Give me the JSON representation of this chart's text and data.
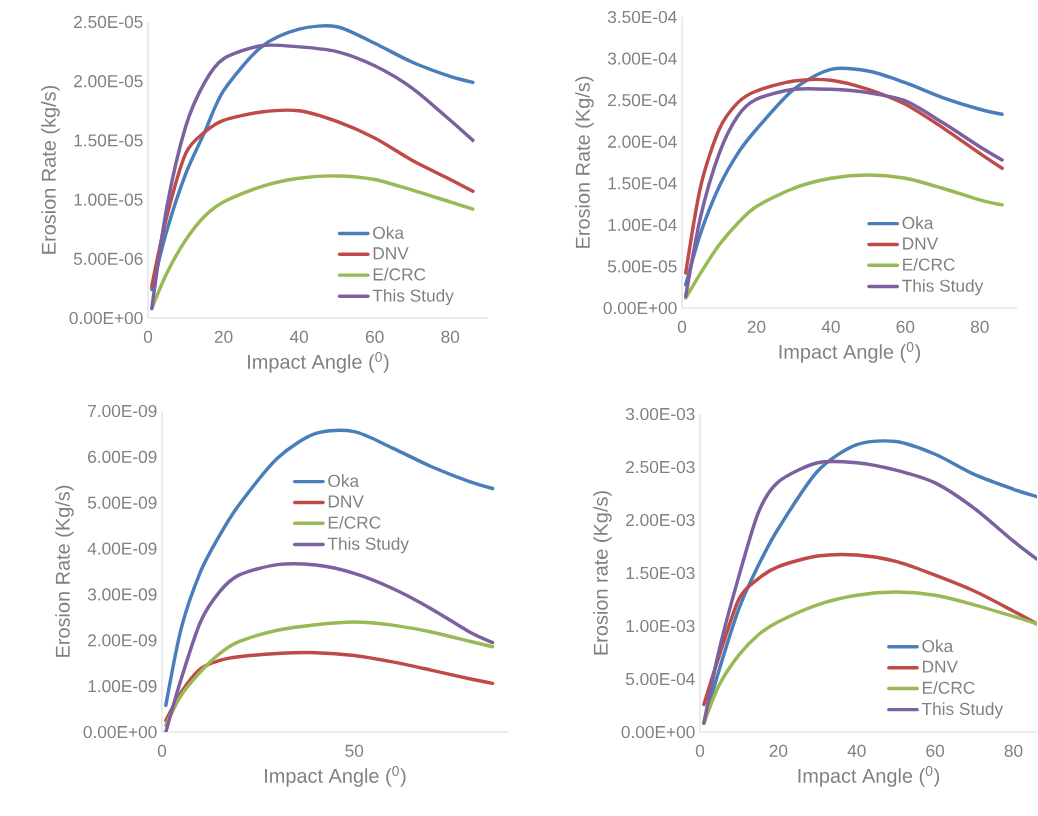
{
  "chart_data": [
    {
      "type": "line",
      "xlabel": "Impact Angle ($^{0}$)",
      "ylabel": "Erosion Rate (kg/s)",
      "legend": "bottom right",
      "x": [
        1,
        5,
        10,
        15,
        20,
        30,
        40,
        50,
        60,
        70,
        80,
        86
      ],
      "xlim": [
        0,
        90
      ],
      "xticks": [
        0,
        20,
        40,
        60,
        80
      ],
      "ylim": [
        0,
        2.5e-05
      ],
      "yticks": [
        {
          "value": 0,
          "label": "0.00E+00"
        },
        {
          "value": 5e-06,
          "label": "5.00E-06"
        },
        {
          "value": 1e-05,
          "label": "1.00E-05"
        },
        {
          "value": 1.5e-05,
          "label": "1.50E-05"
        },
        {
          "value": 2e-05,
          "label": "2.00E-05"
        },
        {
          "value": 2.5e-05,
          "label": "2.50E-05"
        }
      ],
      "series": [
        {
          "name": "Oka",
          "color": "#4a7ebb",
          "values": [
            2.4e-06,
            7.4e-06,
            1.22e-05,
            1.57e-05,
            1.92e-05,
            2.29e-05,
            2.44e-05,
            2.46e-05,
            2.32e-05,
            2.16e-05,
            2.04e-05,
            1.99e-05
          ]
        },
        {
          "name": "DNV",
          "color": "#be4b48",
          "values": [
            2.7e-06,
            8.6e-06,
            1.39e-05,
            1.57e-05,
            1.67e-05,
            1.74e-05,
            1.75e-05,
            1.66e-05,
            1.52e-05,
            1.33e-05,
            1.17e-05,
            1.07e-05
          ]
        },
        {
          "name": "E/CRC",
          "color": "#98b954",
          "values": [
            8e-07,
            3.8e-06,
            6.6e-06,
            8.6e-06,
            9.8e-06,
            1.11e-05,
            1.18e-05,
            1.2e-05,
            1.17e-05,
            1.08e-05,
            9.8e-06,
            9.2e-06
          ]
        },
        {
          "name": "This Study",
          "color": "#7d60a0",
          "values": [
            8e-07,
            9.4e-06,
            1.62e-05,
            1.99e-05,
            2.19e-05,
            2.3e-05,
            2.29e-05,
            2.25e-05,
            2.13e-05,
            1.94e-05,
            1.67e-05,
            1.5e-05
          ]
        }
      ]
    },
    {
      "type": "line",
      "xlabel": "Impact Angle ($^{0}$)",
      "ylabel": "Erosion Rate (Kg/s)",
      "legend": "bottom right",
      "x": [
        1,
        5,
        10,
        15,
        20,
        30,
        40,
        50,
        60,
        70,
        80,
        86
      ],
      "xlim": [
        0,
        90
      ],
      "xticks": [
        0,
        20,
        40,
        60,
        80
      ],
      "ylim": [
        0,
        0.00035
      ],
      "yticks": [
        {
          "value": 0,
          "label": "0.00E+00"
        },
        {
          "value": 5e-05,
          "label": "5.00E-05"
        },
        {
          "value": 0.0001,
          "label": "1.00E-04"
        },
        {
          "value": 0.00015,
          "label": "1.50E-04"
        },
        {
          "value": 0.0002,
          "label": "2.00E-04"
        },
        {
          "value": 0.00025,
          "label": "2.50E-04"
        },
        {
          "value": 0.0003,
          "label": "3.00E-04"
        },
        {
          "value": 0.00035,
          "label": "3.50E-04"
        }
      ],
      "series": [
        {
          "name": "Oka",
          "color": "#4a7ebb",
          "values": [
            2.8e-05,
            9e-05,
            0.000146,
            0.000186,
            0.000215,
            0.000263,
            0.000287,
            0.000285,
            0.000271,
            0.000253,
            0.000239,
            0.000233
          ]
        },
        {
          "name": "DNV",
          "color": "#be4b48",
          "values": [
            4.2e-05,
            0.000146,
            0.000215,
            0.000247,
            0.000261,
            0.000273,
            0.000274,
            0.000263,
            0.000245,
            0.000217,
            0.000186,
            0.000168
          ]
        },
        {
          "name": "E/CRC",
          "color": "#98b954",
          "values": [
            1.2e-05,
            4.2e-05,
            7.6e-05,
            0.000102,
            0.000122,
            0.000144,
            0.000156,
            0.00016,
            0.000156,
            0.000144,
            0.00013,
            0.000124
          ]
        },
        {
          "name": "This Study",
          "color": "#7d60a0",
          "values": [
            1.4e-05,
            0.00011,
            0.000186,
            0.000231,
            0.000251,
            0.000263,
            0.000263,
            0.000259,
            0.000249,
            0.000223,
            0.000194,
            0.000178
          ]
        }
      ]
    },
    {
      "type": "line",
      "xlabel": "Impact Angle ($^{0}$)",
      "ylabel": "Erosion Rate (Kg/s)",
      "legend": "top",
      "x": [
        1,
        5,
        10,
        15,
        20,
        30,
        40,
        50,
        60,
        70,
        80,
        86
      ],
      "xlim": [
        0,
        90
      ],
      "xticks": [
        0,
        50
      ],
      "ylim": [
        0,
        7e-09
      ],
      "yticks": [
        {
          "value": 0,
          "label": "0.00E+00"
        },
        {
          "value": 1e-09,
          "label": "1.00E-09"
        },
        {
          "value": 2e-09,
          "label": "2.00E-09"
        },
        {
          "value": 3e-09,
          "label": "3.00E-09"
        },
        {
          "value": 4e-09,
          "label": "4.00E-09"
        },
        {
          "value": 5e-09,
          "label": "5.00E-09"
        },
        {
          "value": 6e-09,
          "label": "6.00E-09"
        },
        {
          "value": 7e-09,
          "label": "7.00E-09"
        }
      ],
      "series": [
        {
          "name": "Oka",
          "color": "#4a7ebb",
          "values": [
            5.8e-10,
            2.26e-09,
            3.49e-09,
            4.29e-09,
            4.95e-09,
            5.97e-09,
            6.51e-09,
            6.55e-09,
            6.19e-09,
            5.79e-09,
            5.46e-09,
            5.31e-09
          ]
        },
        {
          "name": "DNV",
          "color": "#be4b48",
          "values": [
            2.5e-10,
            8.7e-10,
            1.38e-09,
            1.56e-09,
            1.64e-09,
            1.71e-09,
            1.73e-09,
            1.67e-09,
            1.53e-09,
            1.35e-09,
            1.16e-09,
            1.06e-09
          ]
        },
        {
          "name": "E/CRC",
          "color": "#98b954",
          "values": [
            1.5e-10,
            8e-10,
            1.31e-09,
            1.71e-09,
            1.97e-09,
            2.22e-09,
            2.34e-09,
            2.4e-09,
            2.33e-09,
            2.18e-09,
            1.98e-09,
            1.86e-09
          ]
        },
        {
          "name": "This Study",
          "color": "#7d60a0",
          "values": [
            0,
            1.16e-09,
            2.4e-09,
            3.06e-09,
            3.42e-09,
            3.65e-09,
            3.64e-09,
            3.46e-09,
            3.13e-09,
            2.69e-09,
            2.18e-09,
            1.95e-09
          ]
        }
      ]
    },
    {
      "type": "line",
      "xlabel": "Impact Angle ($^{0}$)",
      "ylabel": "Erosion rate (Kg/s)",
      "legend": "bottom right",
      "x": [
        1,
        5,
        10,
        15,
        20,
        30,
        40,
        50,
        60,
        70,
        80,
        86
      ],
      "xlim": [
        0,
        86
      ],
      "xticks": [
        0,
        20,
        40,
        60,
        80
      ],
      "ylim": [
        0,
        0.003
      ],
      "yticks": [
        {
          "value": 0,
          "label": "0.00E+00"
        },
        {
          "value": 0.0005,
          "label": "5.00E-04"
        },
        {
          "value": 0.001,
          "label": "1.00E-03"
        },
        {
          "value": 0.0015,
          "label": "1.50E-03"
        },
        {
          "value": 0.002,
          "label": "2.00E-03"
        },
        {
          "value": 0.0025,
          "label": "2.50E-03"
        },
        {
          "value": 0.003,
          "label": "3.00E-03"
        }
      ],
      "series": [
        {
          "name": "Oka",
          "color": "#4a7ebb",
          "values": [
            8.5e-05,
            0.0006,
            0.00117,
            0.00158,
            0.00192,
            0.00246,
            0.00271,
            0.00274,
            0.00262,
            0.00243,
            0.00229,
            0.00222
          ]
        },
        {
          "name": "DNV",
          "color": "#be4b48",
          "values": [
            0.00026,
            0.00073,
            0.00126,
            0.00145,
            0.00156,
            0.00166,
            0.00167,
            0.00161,
            0.00148,
            0.00133,
            0.00114,
            0.00102
          ]
        },
        {
          "name": "E/CRC",
          "color": "#98b954",
          "values": [
            8.5e-05,
            0.00045,
            0.00073,
            0.00092,
            0.00104,
            0.0012,
            0.00129,
            0.00132,
            0.00129,
            0.0012,
            0.00109,
            0.00102
          ]
        },
        {
          "name": "This Study",
          "color": "#7d60a0",
          "values": [
            8.5e-05,
            0.00079,
            0.00148,
            0.00208,
            0.00236,
            0.00254,
            0.00254,
            0.00247,
            0.00235,
            0.00211,
            0.0018,
            0.00163
          ]
        }
      ]
    }
  ]
}
